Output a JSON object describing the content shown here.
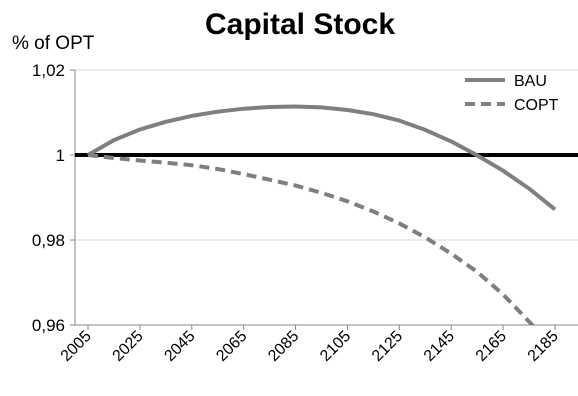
{
  "chart_data": {
    "type": "line",
    "title": "Capital Stock",
    "xlabel": "",
    "ylabel": "% of OPT",
    "x": [
      2005,
      2015,
      2025,
      2035,
      2045,
      2055,
      2065,
      2075,
      2085,
      2095,
      2105,
      2115,
      2125,
      2135,
      2145,
      2155,
      2165,
      2175,
      2185
    ],
    "x_tick_labels": [
      "2005",
      "2025",
      "2045",
      "2065",
      "2085",
      "2105",
      "2125",
      "2145",
      "2165",
      "2185"
    ],
    "y_tick_labels": [
      "1,02",
      "1",
      "0,98",
      "0,96"
    ],
    "ylim": [
      0.96,
      1.02
    ],
    "reference_line": 1.0,
    "grid": "horizontal",
    "legend_position": "top-right",
    "series": [
      {
        "name": "BAU",
        "style": "solid",
        "color": "#7f7f7f",
        "values": [
          1.0,
          1.0035,
          1.006,
          1.0078,
          1.0092,
          1.0102,
          1.0109,
          1.0113,
          1.0114,
          1.0112,
          1.0106,
          1.0096,
          1.0081,
          1.0059,
          1.0032,
          0.9999,
          0.9963,
          0.9921,
          0.9872
        ]
      },
      {
        "name": "COPT",
        "style": "dashed",
        "color": "#7f7f7f",
        "values": [
          1.0,
          0.9993,
          0.9987,
          0.9982,
          0.9976,
          0.9967,
          0.9955,
          0.9942,
          0.9928,
          0.9911,
          0.9891,
          0.9867,
          0.9839,
          0.9806,
          0.9768,
          0.9725,
          0.9672,
          0.9608,
          0.9544
        ]
      }
    ],
    "colors": {
      "reference_line": "#000000",
      "gridline": "#d9d9d9",
      "axis": "#868686"
    }
  }
}
